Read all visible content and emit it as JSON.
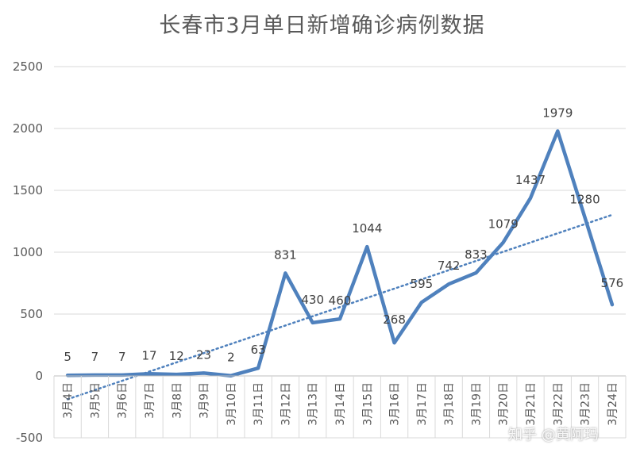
{
  "chart_data": {
    "type": "line",
    "title": "长春市3月单日新增确诊病例数据",
    "xlabel": "",
    "ylabel": "",
    "categories": [
      "3月4日",
      "3月5日",
      "3月6日",
      "3月7日",
      "3月8日",
      "3月9日",
      "3月10日",
      "3月11日",
      "3月12日",
      "3月13日",
      "3月14日",
      "3月15日",
      "3月16日",
      "3月17日",
      "3月18日",
      "3月19日",
      "3月20日",
      "3月21日",
      "3月22日",
      "3月23日",
      "3月24日"
    ],
    "series": [
      {
        "name": "",
        "values": [
          5,
          7,
          7,
          17,
          12,
          23,
          2,
          63,
          831,
          430,
          460,
          1044,
          268,
          595,
          742,
          833,
          1079,
          1437,
          1979,
          1280,
          576
        ],
        "color": "#4f81bd"
      }
    ],
    "trendline": {
      "type": "linear",
      "style": "dotted",
      "color": "#4f81bd"
    },
    "ylim": [
      -500,
      2500
    ],
    "yticks": [
      -500,
      0,
      500,
      1000,
      1500,
      2000,
      2500
    ],
    "grid": true,
    "legend": "none"
  },
  "watermark": "知乎 @黄阿玛"
}
